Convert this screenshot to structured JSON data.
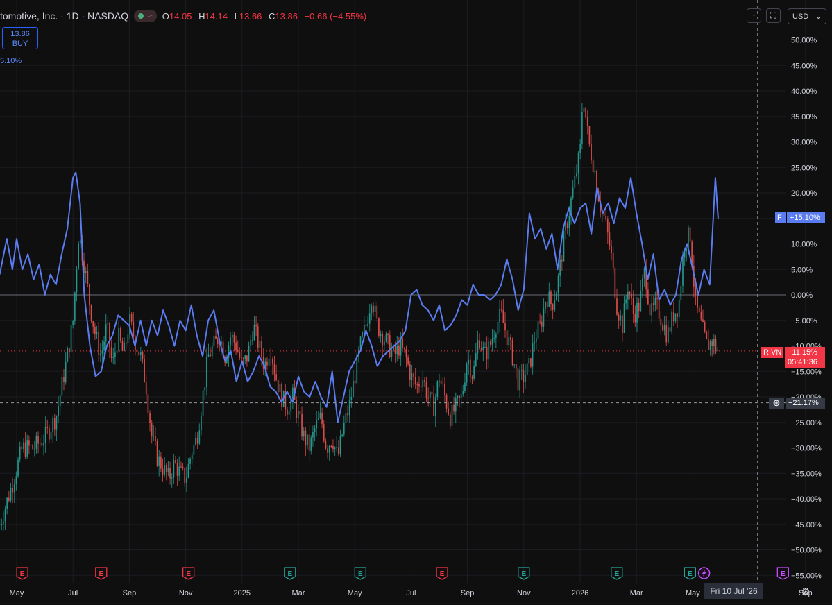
{
  "header": {
    "title": "tomotive, Inc. · 1D · NASDAQ",
    "open_label": "O",
    "open": "14.05",
    "high_label": "H",
    "high": "14.14",
    "low_label": "L",
    "low": "13.66",
    "close_label": "C",
    "close": "13.86",
    "change": "−0.66 (−4.55%)",
    "wave_glyph": "≈"
  },
  "buy_button": {
    "price": "13.86",
    "label": "BUY"
  },
  "compare_value": "5.10%",
  "toolbar": {
    "currency": "USD",
    "chevron": "⌄",
    "arrow_icon": "↑",
    "fullscreen_icon": "⛶"
  },
  "price_tags": {
    "f": {
      "symbol": "F",
      "value": "+15.10%",
      "color": "#5b8cff"
    },
    "rivn": {
      "symbol": "RIVN",
      "value": "−11.15%",
      "countdown": "05:41:36",
      "color": "#f23645"
    },
    "crosshair": {
      "value": "−21.17%",
      "plus_icon": "⊕"
    }
  },
  "crosshair_date": "Fri 10 Jul '26",
  "settings_icon": "⚙",
  "chart_data": {
    "type": "line",
    "title": "",
    "y_unit": "%",
    "ylim": [
      -55,
      50
    ],
    "y_ticks": [
      "50.00%",
      "45.00%",
      "40.00%",
      "35.00%",
      "30.00%",
      "25.00%",
      "20.00%",
      "15.00%",
      "10.00%",
      "5.00%",
      "0.00%",
      "−5.00%",
      "−10.00%",
      "−15.00%",
      "−20.00%",
      "−25.00%",
      "−30.00%",
      "−35.00%",
      "−40.00%",
      "−45.00%",
      "−50.00%",
      "−55.00%"
    ],
    "x_ticks": [
      {
        "label": "May",
        "m": 0
      },
      {
        "label": "Jul",
        "m": 2
      },
      {
        "label": "Sep",
        "m": 4
      },
      {
        "label": "Nov",
        "m": 6
      },
      {
        "label": "2025",
        "m": 8
      },
      {
        "label": "Mar",
        "m": 10
      },
      {
        "label": "May",
        "m": 12
      },
      {
        "label": "Jul",
        "m": 14
      },
      {
        "label": "Sep",
        "m": 16
      },
      {
        "label": "Nov",
        "m": 18
      },
      {
        "label": "2026",
        "m": 20
      },
      {
        "label": "Mar",
        "m": 22
      },
      {
        "label": "May",
        "m": 24
      },
      {
        "label": "Sep",
        "m": 28
      }
    ],
    "crosshair_m": 26.3,
    "crosshair_y": -21.17,
    "events": [
      {
        "m": 0.2,
        "type": "E",
        "color": "#f23645"
      },
      {
        "m": 3.0,
        "type": "E",
        "color": "#f23645"
      },
      {
        "m": 6.1,
        "type": "E",
        "color": "#f23645"
      },
      {
        "m": 9.7,
        "type": "E",
        "color": "#26a69a"
      },
      {
        "m": 12.2,
        "type": "E",
        "color": "#26a69a"
      },
      {
        "m": 15.1,
        "type": "E",
        "color": "#f23645"
      },
      {
        "m": 18.0,
        "type": "E",
        "color": "#26a69a"
      },
      {
        "m": 21.3,
        "type": "E",
        "color": "#26a69a"
      },
      {
        "m": 23.9,
        "type": "E",
        "color": "#26a69a"
      },
      {
        "m": 24.4,
        "type": "lightning",
        "color": "#c74dff"
      },
      {
        "m": 27.2,
        "type": "E",
        "color": "#c74dff"
      }
    ],
    "series": [
      {
        "name": "F",
        "style": "line",
        "color": "#5b7cf0",
        "points": [
          [
            -0.6,
            4
          ],
          [
            -0.35,
            11
          ],
          [
            -0.15,
            5
          ],
          [
            0,
            11
          ],
          [
            0.2,
            5
          ],
          [
            0.4,
            8
          ],
          [
            0.6,
            3
          ],
          [
            0.8,
            6
          ],
          [
            1.0,
            0
          ],
          [
            1.2,
            4
          ],
          [
            1.4,
            2
          ],
          [
            1.6,
            8
          ],
          [
            1.8,
            13
          ],
          [
            2.0,
            23
          ],
          [
            2.1,
            24
          ],
          [
            2.25,
            18
          ],
          [
            2.4,
            0
          ],
          [
            2.6,
            -10
          ],
          [
            2.8,
            -16
          ],
          [
            3.0,
            -15
          ],
          [
            3.2,
            -10
          ],
          [
            3.4,
            -8
          ],
          [
            3.6,
            -4
          ],
          [
            3.8,
            -5
          ],
          [
            4.0,
            -6
          ],
          [
            4.2,
            -10
          ],
          [
            4.4,
            -5
          ],
          [
            4.6,
            -10
          ],
          [
            4.8,
            -5
          ],
          [
            5.0,
            -8
          ],
          [
            5.2,
            -3
          ],
          [
            5.4,
            -6
          ],
          [
            5.6,
            -10
          ],
          [
            5.8,
            -5
          ],
          [
            6.0,
            -7
          ],
          [
            6.2,
            -2
          ],
          [
            6.4,
            -8
          ],
          [
            6.6,
            -12
          ],
          [
            6.8,
            -5
          ],
          [
            7.0,
            -3
          ],
          [
            7.2,
            -9
          ],
          [
            7.4,
            -13
          ],
          [
            7.6,
            -11
          ],
          [
            7.8,
            -17
          ],
          [
            8.0,
            -13
          ],
          [
            8.2,
            -17
          ],
          [
            8.4,
            -15
          ],
          [
            8.6,
            -12
          ],
          [
            8.8,
            -14
          ],
          [
            9.0,
            -18
          ],
          [
            9.2,
            -19
          ],
          [
            9.4,
            -21
          ],
          [
            9.6,
            -19
          ],
          [
            9.8,
            -21
          ],
          [
            10.0,
            -16
          ],
          [
            10.2,
            -19
          ],
          [
            10.4,
            -20
          ],
          [
            10.6,
            -17
          ],
          [
            10.8,
            -20
          ],
          [
            11.0,
            -22
          ],
          [
            11.2,
            -15
          ],
          [
            11.4,
            -25
          ],
          [
            11.6,
            -20
          ],
          [
            11.8,
            -15
          ],
          [
            12.0,
            -13
          ],
          [
            12.2,
            -11
          ],
          [
            12.4,
            -7
          ],
          [
            12.6,
            -10
          ],
          [
            12.8,
            -14
          ],
          [
            13.0,
            -12
          ],
          [
            13.2,
            -11
          ],
          [
            13.4,
            -10
          ],
          [
            13.6,
            -9
          ],
          [
            13.8,
            -7
          ],
          [
            14.0,
            0
          ],
          [
            14.2,
            1
          ],
          [
            14.4,
            -2
          ],
          [
            14.6,
            -3
          ],
          [
            14.8,
            -5
          ],
          [
            15.0,
            -2
          ],
          [
            15.2,
            -7
          ],
          [
            15.4,
            -6
          ],
          [
            15.6,
            -4
          ],
          [
            15.8,
            -1
          ],
          [
            16.0,
            -2
          ],
          [
            16.2,
            2
          ],
          [
            16.4,
            0
          ],
          [
            16.6,
            0
          ],
          [
            16.8,
            -1
          ],
          [
            17.0,
            0
          ],
          [
            17.2,
            2
          ],
          [
            17.4,
            7
          ],
          [
            17.6,
            3
          ],
          [
            17.8,
            -3
          ],
          [
            18.0,
            1
          ],
          [
            18.2,
            16
          ],
          [
            18.4,
            11
          ],
          [
            18.6,
            13
          ],
          [
            18.8,
            9
          ],
          [
            19.0,
            12
          ],
          [
            19.2,
            5
          ],
          [
            19.4,
            13
          ],
          [
            19.6,
            17
          ],
          [
            19.8,
            14
          ],
          [
            20.0,
            17
          ],
          [
            20.2,
            18
          ],
          [
            20.4,
            12
          ],
          [
            20.6,
            21
          ],
          [
            20.8,
            16
          ],
          [
            21.0,
            18
          ],
          [
            21.2,
            14
          ],
          [
            21.4,
            19
          ],
          [
            21.6,
            17
          ],
          [
            21.8,
            23
          ],
          [
            22.0,
            16
          ],
          [
            22.2,
            10
          ],
          [
            22.4,
            3
          ],
          [
            22.6,
            8
          ],
          [
            22.8,
            -1
          ],
          [
            23.0,
            1
          ],
          [
            23.2,
            -2
          ],
          [
            23.4,
            0
          ],
          [
            23.6,
            7
          ],
          [
            23.8,
            10
          ],
          [
            24.0,
            5
          ],
          [
            24.2,
            0
          ],
          [
            24.4,
            5
          ],
          [
            24.6,
            2
          ],
          [
            24.8,
            23
          ],
          [
            24.9,
            15
          ]
        ]
      },
      {
        "name": "RIVN",
        "style": "candles",
        "up_color": "#26a69a",
        "down_color": "#ef5350",
        "points": [
          [
            -0.6,
            -45
          ],
          [
            -0.2,
            -38
          ],
          [
            0.2,
            -30
          ],
          [
            0.6,
            -30
          ],
          [
            1.0,
            -28
          ],
          [
            1.4,
            -24
          ],
          [
            1.8,
            -12
          ],
          [
            2.0,
            -5
          ],
          [
            2.2,
            12
          ],
          [
            2.4,
            6
          ],
          [
            2.6,
            -2
          ],
          [
            2.8,
            -8
          ],
          [
            3.0,
            -12
          ],
          [
            3.2,
            -6
          ],
          [
            3.4,
            -14
          ],
          [
            3.6,
            -8
          ],
          [
            3.8,
            -12
          ],
          [
            4.0,
            -5
          ],
          [
            4.2,
            -9
          ],
          [
            4.4,
            -12
          ],
          [
            4.6,
            -18
          ],
          [
            4.8,
            -28
          ],
          [
            5.0,
            -32
          ],
          [
            5.2,
            -34
          ],
          [
            5.4,
            -36
          ],
          [
            5.6,
            -33
          ],
          [
            5.8,
            -35
          ],
          [
            6.0,
            -36
          ],
          [
            6.2,
            -31
          ],
          [
            6.4,
            -28
          ],
          [
            6.6,
            -20
          ],
          [
            6.8,
            -12
          ],
          [
            7.0,
            -10
          ],
          [
            7.2,
            -8
          ],
          [
            7.4,
            -12
          ],
          [
            7.6,
            -8
          ],
          [
            7.8,
            -10
          ],
          [
            8.0,
            -14
          ],
          [
            8.2,
            -12
          ],
          [
            8.4,
            -6
          ],
          [
            8.6,
            -10
          ],
          [
            8.8,
            -14
          ],
          [
            9.0,
            -10
          ],
          [
            9.2,
            -16
          ],
          [
            9.4,
            -20
          ],
          [
            9.6,
            -22
          ],
          [
            9.8,
            -20
          ],
          [
            10.0,
            -24
          ],
          [
            10.2,
            -28
          ],
          [
            10.4,
            -30
          ],
          [
            10.6,
            -26
          ],
          [
            10.8,
            -24
          ],
          [
            11.0,
            -30
          ],
          [
            11.2,
            -28
          ],
          [
            11.4,
            -32
          ],
          [
            11.6,
            -26
          ],
          [
            11.8,
            -22
          ],
          [
            12.0,
            -16
          ],
          [
            12.2,
            -10
          ],
          [
            12.4,
            -6
          ],
          [
            12.6,
            0
          ],
          [
            12.8,
            -6
          ],
          [
            13.0,
            -8
          ],
          [
            13.2,
            -10
          ],
          [
            13.4,
            -12
          ],
          [
            13.6,
            -10
          ],
          [
            13.8,
            -12
          ],
          [
            14.0,
            -16
          ],
          [
            14.2,
            -18
          ],
          [
            14.4,
            -16
          ],
          [
            14.6,
            -20
          ],
          [
            14.8,
            -22
          ],
          [
            15.0,
            -16
          ],
          [
            15.2,
            -20
          ],
          [
            15.4,
            -24
          ],
          [
            15.6,
            -22
          ],
          [
            15.8,
            -20
          ],
          [
            16.0,
            -12
          ],
          [
            16.2,
            -16
          ],
          [
            16.4,
            -8
          ],
          [
            16.6,
            -12
          ],
          [
            16.8,
            -10
          ],
          [
            17.0,
            -6
          ],
          [
            17.2,
            -4
          ],
          [
            17.4,
            -8
          ],
          [
            17.6,
            -12
          ],
          [
            17.8,
            -17
          ],
          [
            18.0,
            -16
          ],
          [
            18.2,
            -14
          ],
          [
            18.4,
            -8
          ],
          [
            18.6,
            -6
          ],
          [
            18.8,
            0
          ],
          [
            19.0,
            -2
          ],
          [
            19.2,
            2
          ],
          [
            19.4,
            10
          ],
          [
            19.6,
            16
          ],
          [
            19.8,
            22
          ],
          [
            20.0,
            28
          ],
          [
            20.1,
            40
          ],
          [
            20.3,
            30
          ],
          [
            20.5,
            25
          ],
          [
            20.7,
            18
          ],
          [
            20.9,
            14
          ],
          [
            21.1,
            8
          ],
          [
            21.3,
            -2
          ],
          [
            21.5,
            -6
          ],
          [
            21.7,
            2
          ],
          [
            21.9,
            -4
          ],
          [
            22.1,
            -2
          ],
          [
            22.3,
            5
          ],
          [
            22.5,
            -4
          ],
          [
            22.7,
            -2
          ],
          [
            22.9,
            -5
          ],
          [
            23.1,
            -8
          ],
          [
            23.3,
            -4
          ],
          [
            23.5,
            -2
          ],
          [
            23.7,
            10
          ],
          [
            23.9,
            12
          ],
          [
            24.1,
            -2
          ],
          [
            24.3,
            -6
          ],
          [
            24.5,
            -10
          ],
          [
            24.7,
            -9
          ],
          [
            24.9,
            -11
          ]
        ]
      }
    ]
  }
}
